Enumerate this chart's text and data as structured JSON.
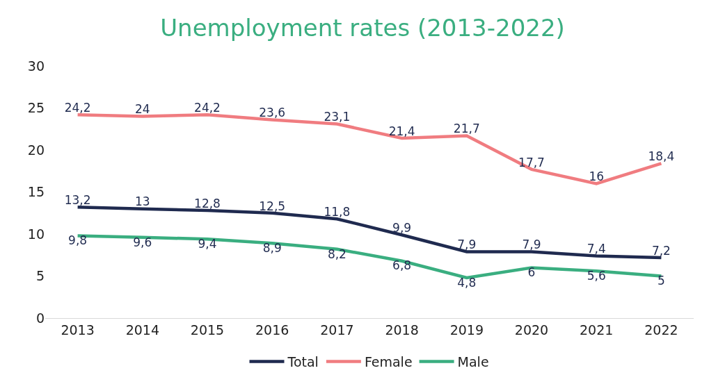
{
  "chart_data": {
    "type": "line",
    "title": "Unemployment rates (2013-2022)",
    "categories": [
      "2013",
      "2014",
      "2015",
      "2016",
      "2017",
      "2018",
      "2019",
      "2020",
      "2021",
      "2022"
    ],
    "ylim": [
      0,
      30
    ],
    "yticks": [
      0,
      5,
      10,
      15,
      20,
      25,
      30
    ],
    "grid": false,
    "legend": "bottom",
    "marker": "none",
    "line_style": "solid",
    "series": [
      {
        "name": "Total",
        "color": "#1f2a4f",
        "values": [
          13.2,
          13,
          12.8,
          12.5,
          11.8,
          9.9,
          7.9,
          7.9,
          7.4,
          7.2
        ],
        "value_labels": [
          "13,2",
          "13",
          "12,8",
          "12,5",
          "11,8",
          "9,9",
          "7,9",
          "7,9",
          "7,4",
          "7,2"
        ]
      },
      {
        "name": "Female",
        "color": "#f07c80",
        "values": [
          24.2,
          24,
          24.2,
          23.6,
          23.1,
          21.4,
          21.7,
          17.7,
          16,
          18.4
        ],
        "value_labels": [
          "24,2",
          "24",
          "24,2",
          "23,6",
          "23,1",
          "21,4",
          "21,7",
          "17,7",
          "16",
          "18,4"
        ]
      },
      {
        "name": "Male",
        "color": "#3aae80",
        "values": [
          9.8,
          9.6,
          9.4,
          8.9,
          8.2,
          6.8,
          4.8,
          6,
          5.6,
          5
        ],
        "value_labels": [
          "9,8",
          "9,6",
          "9,4",
          "8,9",
          "8,2",
          "6,8",
          "4,8",
          "6",
          "5,6",
          "5"
        ]
      }
    ]
  }
}
